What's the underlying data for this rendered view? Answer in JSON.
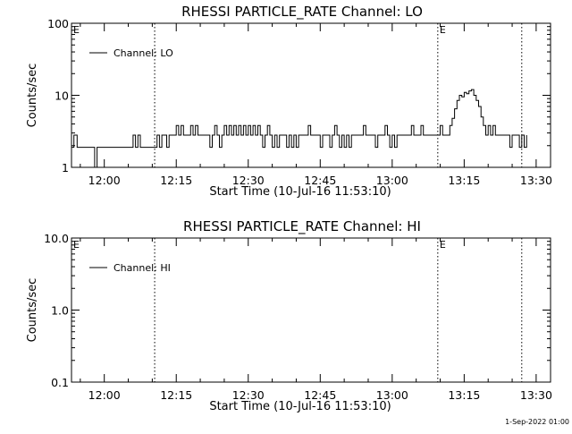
{
  "footer_timestamp": "1-Sep-2022 01:00",
  "chart_data": [
    {
      "type": "line",
      "title": "RHESSI PARTICLE_RATE Channel: LO",
      "xlabel": "Start Time (10-Jul-16 11:53:10)",
      "ylabel": "Counts/sec",
      "yscale": "log",
      "ylim": [
        1,
        100
      ],
      "yticks": [
        "1",
        "10",
        "100"
      ],
      "xlim": [
        "11:53:10",
        "13:33:00"
      ],
      "xticks": [
        "12:00",
        "12:15",
        "12:30",
        "12:45",
        "13:00",
        "13:15",
        "13:30"
      ],
      "legend": {
        "position": "top-left",
        "entries": [
          "Channel: LO"
        ]
      },
      "markers": [
        {
          "time": "12:10:30",
          "label": ""
        },
        {
          "time": "13:09:30",
          "label": "E"
        },
        {
          "time": "13:27:00",
          "label": ""
        }
      ],
      "corner_label": "E",
      "series": [
        {
          "name": "Channel: LO",
          "color": "#000000",
          "points": [
            [
              "11:53:10",
              1.9
            ],
            [
              "11:53:40",
              2.8
            ],
            [
              "11:54:20",
              1.9
            ],
            [
              "11:56:00",
              1.9
            ],
            [
              "11:57:20",
              1.9
            ],
            [
              "11:58:00",
              1.0
            ],
            [
              "11:58:30",
              1.9
            ],
            [
              "12:05:30",
              1.9
            ],
            [
              "12:06:00",
              2.8
            ],
            [
              "12:06:30",
              1.9
            ],
            [
              "12:07:00",
              2.8
            ],
            [
              "12:07:30",
              1.9
            ],
            [
              "12:10:30",
              1.9
            ],
            [
              "12:11:00",
              2.8
            ],
            [
              "12:11:30",
              1.9
            ],
            [
              "12:12:00",
              2.8
            ],
            [
              "12:12:30",
              2.8
            ],
            [
              "12:13:00",
              1.9
            ],
            [
              "12:13:30",
              2.8
            ],
            [
              "12:14:30",
              2.8
            ],
            [
              "12:15:00",
              3.8
            ],
            [
              "12:15:30",
              2.8
            ],
            [
              "12:16:00",
              3.8
            ],
            [
              "12:16:30",
              2.8
            ],
            [
              "12:17:30",
              2.8
            ],
            [
              "12:18:00",
              3.8
            ],
            [
              "12:18:30",
              2.8
            ],
            [
              "12:19:00",
              3.8
            ],
            [
              "12:19:30",
              2.8
            ],
            [
              "12:21:30",
              2.8
            ],
            [
              "12:22:00",
              1.9
            ],
            [
              "12:22:30",
              2.8
            ],
            [
              "12:23:00",
              3.8
            ],
            [
              "12:23:30",
              2.8
            ],
            [
              "12:24:00",
              1.9
            ],
            [
              "12:24:30",
              2.8
            ],
            [
              "12:25:00",
              3.8
            ],
            [
              "12:25:30",
              2.8
            ],
            [
              "12:26:00",
              3.8
            ],
            [
              "12:26:30",
              2.8
            ],
            [
              "12:27:00",
              3.8
            ],
            [
              "12:27:30",
              2.8
            ],
            [
              "12:28:00",
              3.8
            ],
            [
              "12:28:30",
              2.8
            ],
            [
              "12:29:00",
              3.8
            ],
            [
              "12:29:30",
              2.8
            ],
            [
              "12:30:00",
              3.8
            ],
            [
              "12:30:30",
              2.8
            ],
            [
              "12:31:00",
              3.8
            ],
            [
              "12:31:30",
              2.8
            ],
            [
              "12:32:00",
              3.8
            ],
            [
              "12:32:30",
              2.8
            ],
            [
              "12:33:00",
              1.9
            ],
            [
              "12:33:30",
              2.8
            ],
            [
              "12:34:00",
              3.8
            ],
            [
              "12:34:30",
              2.8
            ],
            [
              "12:35:00",
              1.9
            ],
            [
              "12:35:30",
              2.8
            ],
            [
              "12:36:00",
              1.9
            ],
            [
              "12:36:30",
              2.8
            ],
            [
              "12:37:30",
              2.8
            ],
            [
              "12:38:00",
              1.9
            ],
            [
              "12:38:30",
              2.8
            ],
            [
              "12:39:00",
              1.9
            ],
            [
              "12:39:30",
              2.8
            ],
            [
              "12:40:00",
              1.9
            ],
            [
              "12:40:30",
              2.8
            ],
            [
              "12:42:00",
              2.8
            ],
            [
              "12:42:30",
              3.8
            ],
            [
              "12:43:00",
              2.8
            ],
            [
              "12:44:30",
              2.8
            ],
            [
              "12:45:00",
              1.9
            ],
            [
              "12:45:30",
              2.8
            ],
            [
              "12:46:30",
              2.8
            ],
            [
              "12:47:00",
              1.9
            ],
            [
              "12:47:30",
              2.8
            ],
            [
              "12:48:00",
              3.8
            ],
            [
              "12:48:30",
              2.8
            ],
            [
              "12:49:00",
              1.9
            ],
            [
              "12:49:30",
              2.8
            ],
            [
              "12:50:00",
              1.9
            ],
            [
              "12:50:30",
              2.8
            ],
            [
              "12:51:00",
              1.9
            ],
            [
              "12:51:30",
              2.8
            ],
            [
              "12:53:30",
              2.8
            ],
            [
              "12:54:00",
              3.8
            ],
            [
              "12:54:30",
              2.8
            ],
            [
              "12:56:00",
              2.8
            ],
            [
              "12:56:30",
              1.9
            ],
            [
              "12:57:00",
              2.8
            ],
            [
              "12:58:00",
              2.8
            ],
            [
              "12:58:30",
              3.8
            ],
            [
              "12:59:00",
              2.8
            ],
            [
              "12:59:30",
              1.9
            ],
            [
              "13:00:00",
              2.8
            ],
            [
              "13:00:30",
              1.9
            ],
            [
              "13:01:00",
              2.8
            ],
            [
              "13:03:30",
              2.8
            ],
            [
              "13:04:00",
              3.8
            ],
            [
              "13:04:30",
              2.8
            ],
            [
              "13:05:30",
              2.8
            ],
            [
              "13:06:00",
              3.8
            ],
            [
              "13:06:30",
              2.8
            ],
            [
              "13:09:30",
              2.8
            ],
            [
              "13:10:00",
              3.8
            ],
            [
              "13:10:30",
              2.8
            ],
            [
              "13:11:30",
              2.8
            ],
            [
              "13:12:00",
              3.8
            ],
            [
              "13:12:30",
              4.8
            ],
            [
              "13:13:00",
              6.5
            ],
            [
              "13:13:30",
              8.5
            ],
            [
              "13:14:00",
              10.0
            ],
            [
              "13:14:30",
              9.5
            ],
            [
              "13:15:00",
              11.0
            ],
            [
              "13:15:30",
              10.5
            ],
            [
              "13:16:00",
              11.5
            ],
            [
              "13:16:30",
              12.0
            ],
            [
              "13:17:00",
              10.0
            ],
            [
              "13:17:30",
              8.5
            ],
            [
              "13:18:00",
              7.0
            ],
            [
              "13:18:30",
              5.0
            ],
            [
              "13:19:00",
              3.8
            ],
            [
              "13:19:30",
              2.8
            ],
            [
              "13:20:00",
              3.8
            ],
            [
              "13:20:30",
              2.8
            ],
            [
              "13:21:00",
              3.8
            ],
            [
              "13:21:30",
              2.8
            ],
            [
              "13:24:00",
              2.8
            ],
            [
              "13:24:30",
              1.9
            ],
            [
              "13:25:00",
              2.8
            ],
            [
              "13:26:00",
              2.8
            ],
            [
              "13:26:30",
              1.9
            ],
            [
              "13:27:00",
              2.8
            ],
            [
              "13:27:30",
              1.9
            ],
            [
              "13:28:00",
              2.8
            ]
          ]
        }
      ]
    },
    {
      "type": "line",
      "title": "RHESSI PARTICLE_RATE Channel: HI",
      "xlabel": "Start Time (10-Jul-16 11:53:10)",
      "ylabel": "Counts/sec",
      "yscale": "log",
      "ylim": [
        0.1,
        10
      ],
      "yticks": [
        "0.1",
        "1.0",
        "10.0"
      ],
      "xlim": [
        "11:53:10",
        "13:33:00"
      ],
      "xticks": [
        "12:00",
        "12:15",
        "12:30",
        "12:45",
        "13:00",
        "13:15",
        "13:30"
      ],
      "legend": {
        "position": "top-left",
        "entries": [
          "Channel: HI"
        ]
      },
      "markers": [
        {
          "time": "12:10:30",
          "label": ""
        },
        {
          "time": "13:09:30",
          "label": "E"
        },
        {
          "time": "13:27:00",
          "label": ""
        }
      ],
      "corner_label": "E",
      "series": [
        {
          "name": "Channel: HI",
          "color": "#000000",
          "points": []
        }
      ]
    }
  ]
}
